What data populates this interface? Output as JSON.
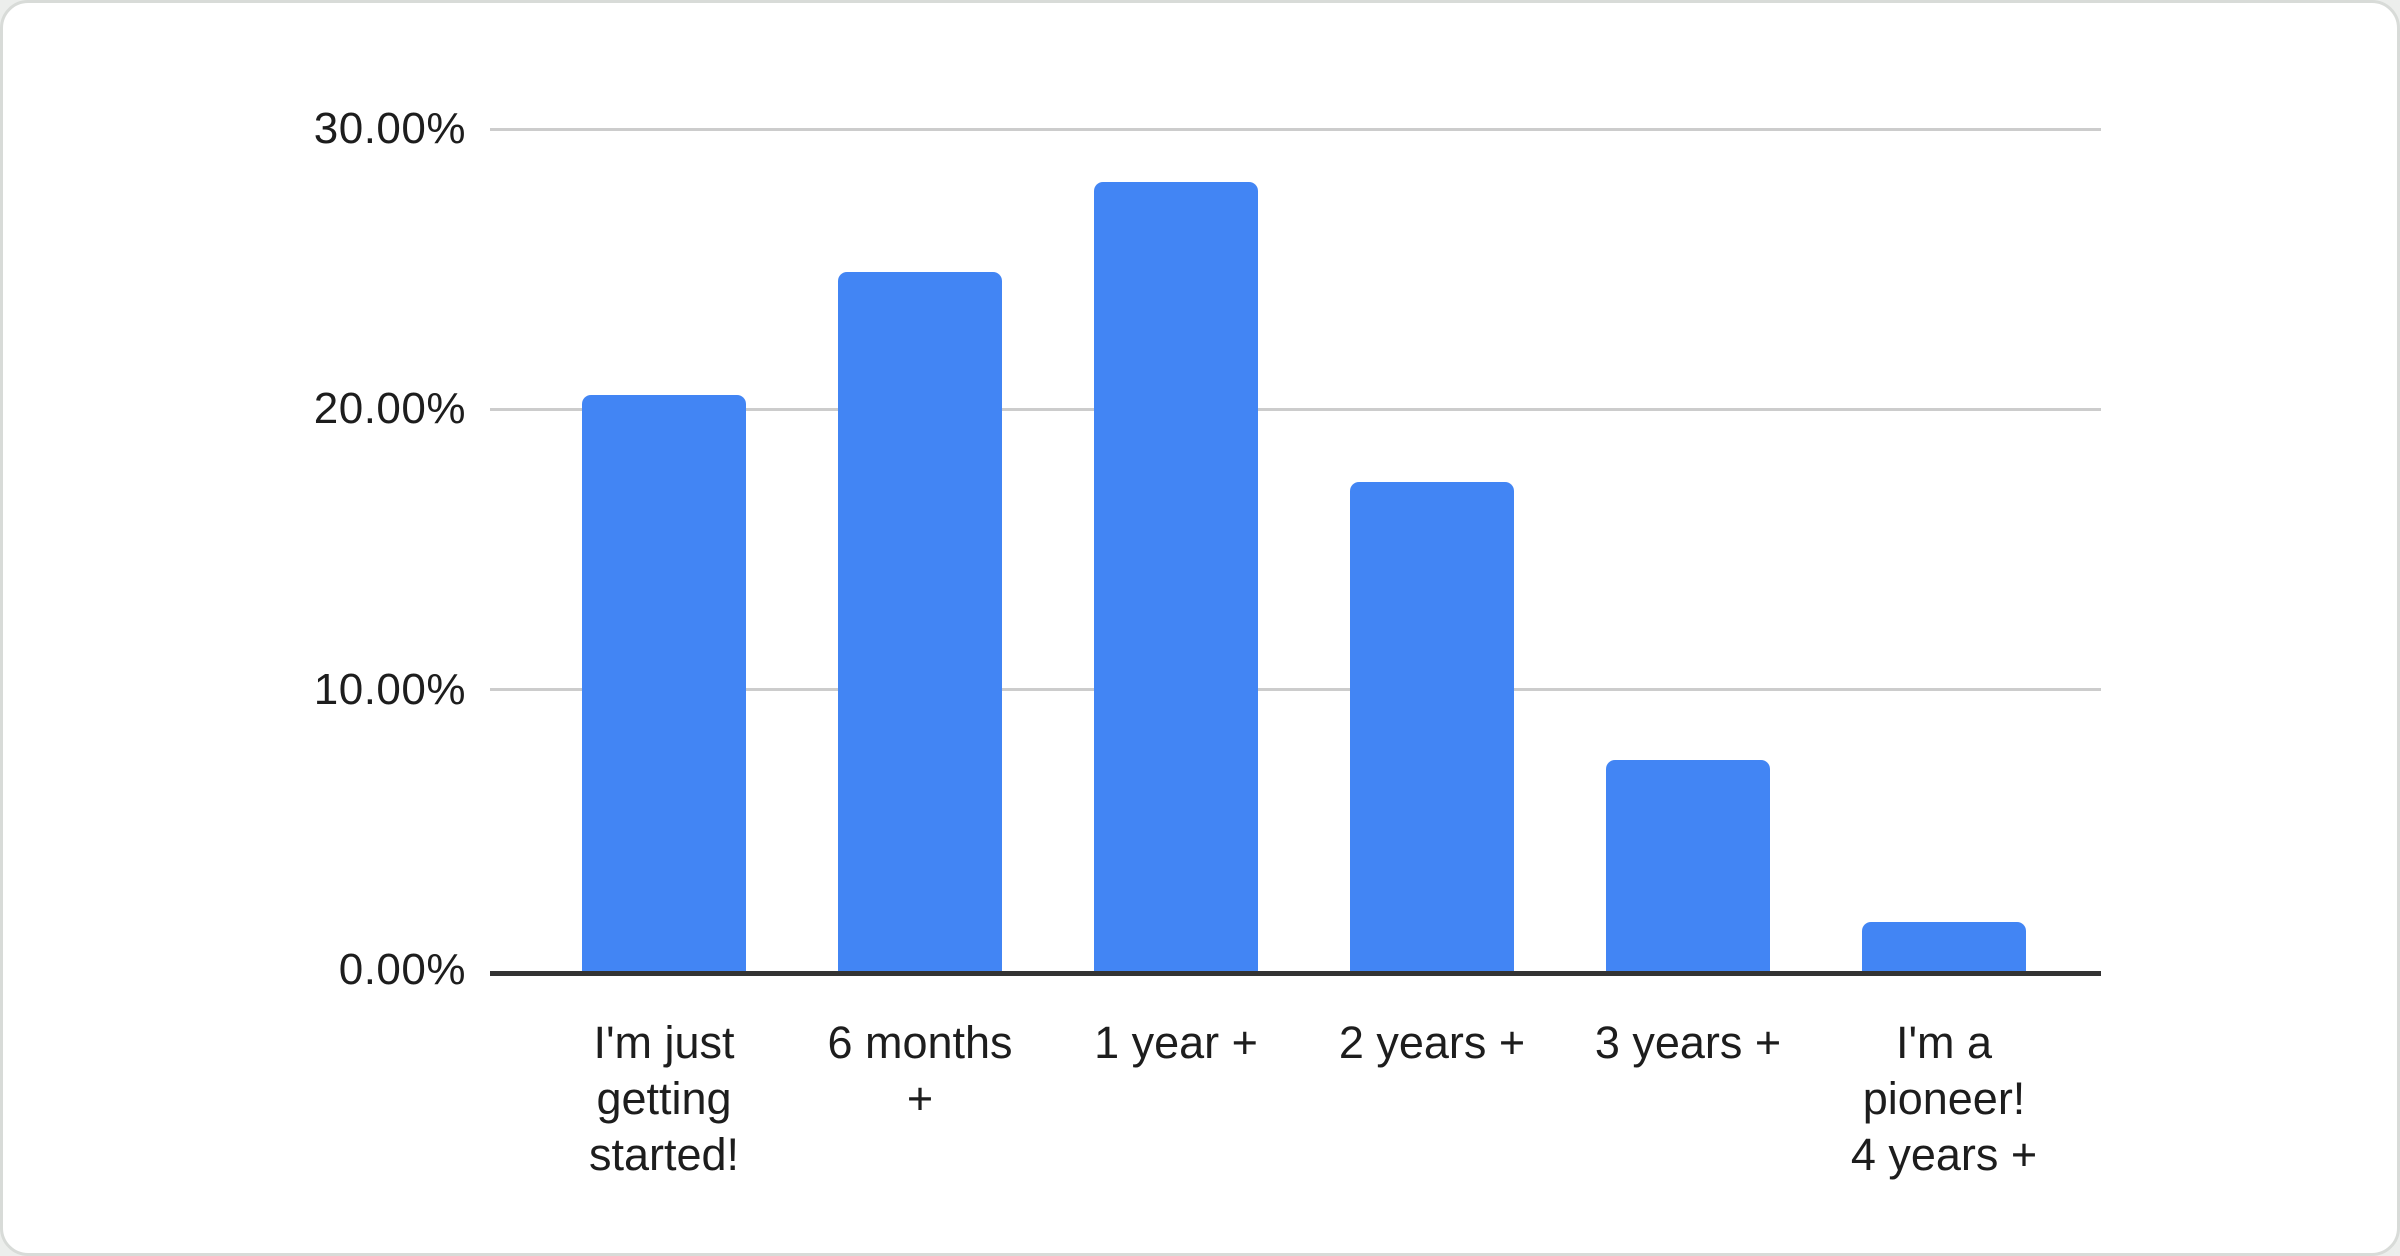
{
  "page": {
    "background": "#eceeec",
    "card_background": "#ffffff",
    "card_border": "#d8dbd8"
  },
  "chart_data": {
    "type": "bar",
    "title": "",
    "xlabel": "",
    "ylabel": "",
    "legend": "none",
    "grid": true,
    "value_format": "percent",
    "categories": [
      "I'm just getting started!",
      "6 months +",
      "1 year +",
      "2 years +",
      "3 years +",
      "I'm a pioneer! 4 years +"
    ],
    "categories_multiline": [
      "I'm just\ngetting\nstarted!",
      "6 months\n+",
      "1 year +",
      "2 years +",
      "3 years +",
      "I'm a\npioneer!\n4 years +"
    ],
    "values": [
      20.5,
      24.9,
      28.1,
      17.4,
      7.5,
      1.7
    ],
    "ylim": [
      0,
      30
    ],
    "y_ticks": [
      {
        "value": 0,
        "label": "0.00%"
      },
      {
        "value": 10,
        "label": "10.00%"
      },
      {
        "value": 20,
        "label": "20.00%"
      },
      {
        "value": 30,
        "label": "30.00%"
      }
    ],
    "colors": {
      "bar": "#4285f4",
      "gridline": "#cccccc",
      "axis_line": "#333333",
      "text": "#1d1d1d"
    }
  }
}
